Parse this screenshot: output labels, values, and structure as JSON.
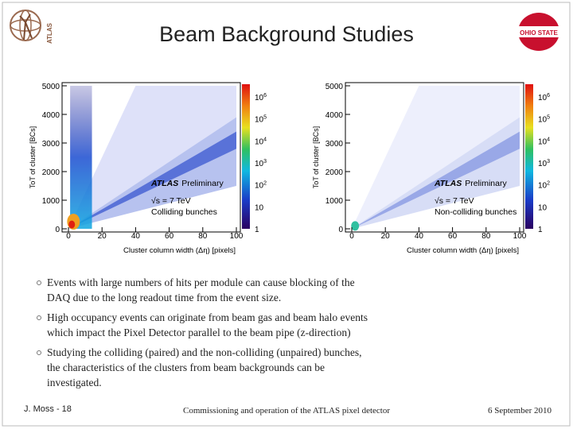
{
  "header": {
    "title": "Beam Background Studies",
    "left_logo": "ATLAS",
    "right_logo": "OHIO STATE"
  },
  "plots": [
    {
      "y_label": "ToT of cluster [BCs]",
      "x_label": "Cluster column width (Δη) [pixels]",
      "y_ticks": [
        0,
        1000,
        2000,
        3000,
        4000,
        5000
      ],
      "x_ticks": [
        0,
        20,
        40,
        60,
        80,
        100
      ],
      "colorbar": [
        {
          "text": "1"
        },
        {
          "text": "10"
        },
        {
          "text": "10",
          "sup": "2"
        },
        {
          "text": "10",
          "sup": "3"
        },
        {
          "text": "10",
          "sup": "4"
        },
        {
          "text": "10",
          "sup": "5"
        },
        {
          "text": "10",
          "sup": "6"
        }
      ],
      "annotations": [
        "ATLAS",
        "Preliminary",
        "√s = 7 TeV",
        "Colliding bunches"
      ]
    },
    {
      "y_label": "ToT of cluster [BCs]",
      "x_label": "Cluster column width (Δη) [pixels]",
      "y_ticks": [
        0,
        1000,
        2000,
        3000,
        4000,
        5000
      ],
      "x_ticks": [
        0,
        20,
        40,
        60,
        80,
        100
      ],
      "colorbar": [
        {
          "text": "1"
        },
        {
          "text": "10"
        },
        {
          "text": "10",
          "sup": "2"
        },
        {
          "text": "10",
          "sup": "3"
        },
        {
          "text": "10",
          "sup": "4"
        },
        {
          "text": "10",
          "sup": "5"
        },
        {
          "text": "10",
          "sup": "6"
        }
      ],
      "annotations": [
        "ATLAS",
        "Preliminary",
        "√s = 7 TeV",
        "Non-colliding bunches"
      ]
    }
  ],
  "bullets": [
    [
      "Events with large numbers of hits per module can cause blocking of the",
      "DAQ due to the long readout time from the event size."
    ],
    [
      "High occupancy events can originate from beam gas and beam halo events",
      "which impact the Pixel Detector parallel to the beam pipe (z-direction)"
    ],
    [
      "Studying the colliding (paired) and the non-colliding (unpaired) bunches,",
      "the characteristics of the clusters from beam backgrounds can be",
      "investigated."
    ]
  ],
  "footer": {
    "author": "J. Moss - 18",
    "talk": "Commissioning and operation of the ATLAS pixel detector",
    "date": "6 September 2010"
  }
}
